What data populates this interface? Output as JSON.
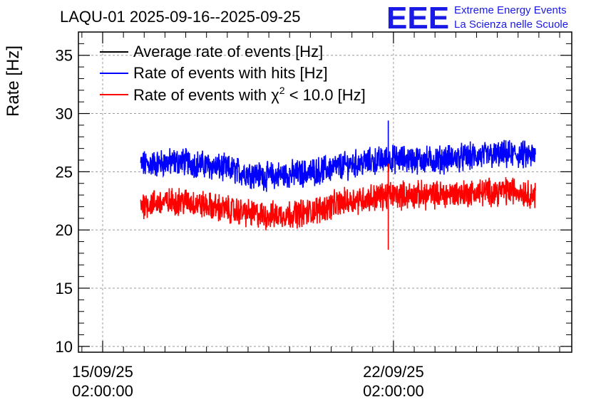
{
  "title": "LAQU-01 2025-09-16--2025-09-25",
  "logo": {
    "mark": "EEE",
    "line1": "Extreme Energy Events",
    "line2": "La Scienza nelle Scuole",
    "color": "#1a1ae6"
  },
  "chart_data": {
    "type": "line",
    "title": "LAQU-01 2025-09-16--2025-09-25",
    "xlabel": "",
    "ylabel": "Rate [Hz]",
    "x_unit": "days",
    "xlim": [
      "2025-09-14 12:00",
      "2025-09-26 09:00"
    ],
    "ylim": [
      9.5,
      37
    ],
    "yticks": [
      10,
      15,
      20,
      25,
      30,
      35
    ],
    "xticks": [
      {
        "date": "2025-09-15 02:00:00",
        "line1": "15/09/25",
        "line2": "02:00:00"
      },
      {
        "date": "2025-09-22 02:00:00",
        "line1": "22/09/25",
        "line2": "02:00:00"
      }
    ],
    "grid": true,
    "legend_position": "top-left",
    "x_range_data": [
      "2025-09-16 00:00",
      "2025-09-25 12:00"
    ],
    "series": [
      {
        "name": "Average rate of events [Hz]",
        "color": "#000000",
        "key_points": []
      },
      {
        "name": "Rate of events with hits [Hz]",
        "color": "#0000ff",
        "key_points": [
          {
            "date": "2025-09-16 00:00",
            "value": 25.6
          },
          {
            "date": "2025-09-17 00:00",
            "value": 25.9
          },
          {
            "date": "2025-09-18 00:00",
            "value": 25.3
          },
          {
            "date": "2025-09-19 00:00",
            "value": 24.6
          },
          {
            "date": "2025-09-20 00:00",
            "value": 24.9
          },
          {
            "date": "2025-09-21 00:00",
            "value": 25.6
          },
          {
            "date": "2025-09-22 00:00",
            "value": 26.1
          },
          {
            "date": "2025-09-23 00:00",
            "value": 26.0
          },
          {
            "date": "2025-09-24 00:00",
            "value": 26.3
          },
          {
            "date": "2025-09-25 00:00",
            "value": 26.5
          },
          {
            "date": "2025-09-25 12:00",
            "value": 26.3
          }
        ],
        "spread": 1.0
      },
      {
        "name_prefix": "Rate of events with ",
        "name_symbol": "χ",
        "name_sup": "2",
        "name_suffix": " < 10.0 [Hz]",
        "color": "#ff0000",
        "key_points": [
          {
            "date": "2025-09-16 00:00",
            "value": 22.2
          },
          {
            "date": "2025-09-17 00:00",
            "value": 22.5
          },
          {
            "date": "2025-09-18 00:00",
            "value": 21.8
          },
          {
            "date": "2025-09-19 00:00",
            "value": 21.2
          },
          {
            "date": "2025-09-20 00:00",
            "value": 21.5
          },
          {
            "date": "2025-09-21 00:00",
            "value": 22.5
          },
          {
            "date": "2025-09-22 00:00",
            "value": 23.0
          },
          {
            "date": "2025-09-23 00:00",
            "value": 23.0
          },
          {
            "date": "2025-09-24 00:00",
            "value": 23.2
          },
          {
            "date": "2025-09-25 00:00",
            "value": 23.4
          },
          {
            "date": "2025-09-25 12:00",
            "value": 23.0
          }
        ],
        "spread": 1.0
      }
    ],
    "spikes": [
      {
        "date": "2025-09-21 23:00",
        "series": 1,
        "low": 23.2,
        "high": 29.4
      },
      {
        "date": "2025-09-21 23:00",
        "series": 2,
        "low": 18.3,
        "high": 25.7
      }
    ]
  }
}
